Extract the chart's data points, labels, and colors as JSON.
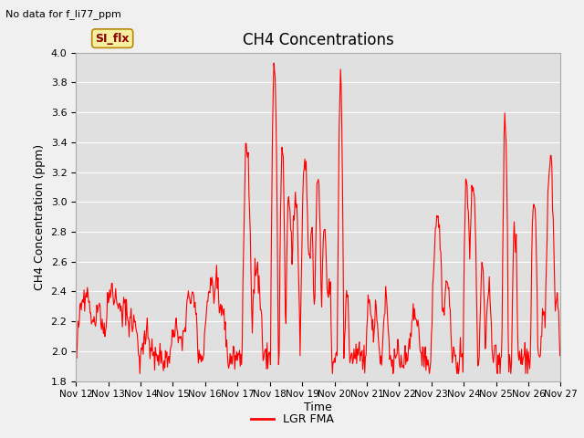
{
  "title": "CH4 Concentrations",
  "xlabel": "Time",
  "ylabel": "CH4 Concentration (ppm)",
  "top_left_text": "No data for f_li77_ppm",
  "tab_label": "SI_flx",
  "legend_label": "LGR FMA",
  "line_color": "#ff0000",
  "plot_bg_color": "#e0e0e0",
  "fig_bg_color": "#f0f0f0",
  "ylim": [
    1.8,
    4.0
  ],
  "yticks": [
    1.8,
    2.0,
    2.2,
    2.4,
    2.6,
    2.8,
    3.0,
    3.2,
    3.4,
    3.6,
    3.8,
    4.0
  ],
  "x_tick_labels": [
    "Nov 12",
    "Nov 13",
    "Nov 14",
    "Nov 15",
    "Nov 16",
    "Nov 17",
    "Nov 18",
    "Nov 19",
    "Nov 20",
    "Nov 21",
    "Nov 22",
    "Nov 23",
    "Nov 24",
    "Nov 25",
    "Nov 26",
    "Nov 27"
  ],
  "num_days": 16,
  "start_day": 12
}
